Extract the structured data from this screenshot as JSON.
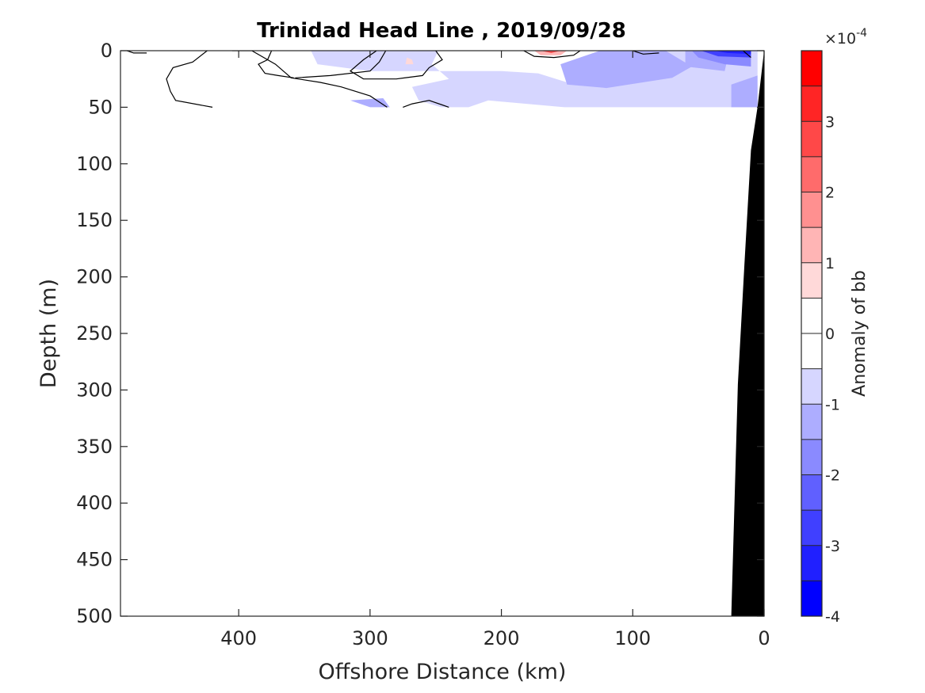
{
  "chart_data": {
    "type": "heatmap",
    "title": "Trinidad Head Line , 2019/09/28",
    "xlabel": "Offshore Distance (km)",
    "ylabel": "Depth (m)",
    "xlim": [
      490,
      0
    ],
    "ylim": [
      500,
      0
    ],
    "x_ticks": [
      400,
      300,
      200,
      100,
      0
    ],
    "y_ticks": [
      0,
      50,
      100,
      150,
      200,
      250,
      300,
      350,
      400,
      450,
      500
    ],
    "colorbar": {
      "label": "Anomaly of bb",
      "exponent_label": "×10",
      "exponent_power": "-4",
      "range": [
        -4,
        4
      ],
      "ticks": [
        -4,
        -3,
        -2,
        -1,
        0,
        1,
        2,
        3
      ],
      "levels": [
        {
          "min": -4.0,
          "max": -3.5,
          "color": "#0000ff"
        },
        {
          "min": -3.5,
          "max": -3.0,
          "color": "#2020ff"
        },
        {
          "min": -3.0,
          "max": -2.5,
          "color": "#4040ff"
        },
        {
          "min": -2.5,
          "max": -2.0,
          "color": "#6060ff"
        },
        {
          "min": -2.0,
          "max": -1.5,
          "color": "#8a8aff"
        },
        {
          "min": -1.5,
          "max": -1.0,
          "color": "#adadff"
        },
        {
          "min": -1.0,
          "max": -0.5,
          "color": "#d6d6ff"
        },
        {
          "min": -0.5,
          "max": 0.0,
          "color": "#ffffff"
        },
        {
          "min": 0.0,
          "max": 0.5,
          "color": "#ffffff"
        },
        {
          "min": 0.5,
          "max": 1.0,
          "color": "#ffd9d9"
        },
        {
          "min": 1.0,
          "max": 1.5,
          "color": "#ffb5b5"
        },
        {
          "min": 1.5,
          "max": 2.0,
          "color": "#ff9090"
        },
        {
          "min": 2.0,
          "max": 2.5,
          "color": "#ff6b6b"
        },
        {
          "min": 2.5,
          "max": 3.0,
          "color": "#ff4848"
        },
        {
          "min": 3.0,
          "max": 3.5,
          "color": "#ff2525"
        },
        {
          "min": 3.5,
          "max": 4.0,
          "color": "#ff0000"
        }
      ]
    },
    "data_depth_range": [
      0,
      50
    ],
    "anomaly_regions": [
      {
        "value": -0.75,
        "points": [
          [
            345,
            0
          ],
          [
            248,
            0
          ],
          [
            253,
            12
          ],
          [
            240,
            25
          ],
          [
            268,
            32
          ],
          [
            263,
            44
          ],
          [
            246,
            50
          ],
          [
            225,
            50
          ],
          [
            210,
            44
          ],
          [
            152,
            50
          ],
          [
            5,
            50
          ],
          [
            5,
            0
          ],
          [
            90,
            0
          ],
          [
            95,
            12
          ],
          [
            150,
            28
          ],
          [
            172,
            20
          ],
          [
            200,
            18
          ],
          [
            270,
            18
          ],
          [
            300,
            18
          ],
          [
            340,
            12
          ]
        ]
      },
      {
        "value": -1.25,
        "points": [
          [
            155,
            12
          ],
          [
            125,
            0
          ],
          [
            75,
            0
          ],
          [
            55,
            14
          ],
          [
            70,
            24
          ],
          [
            120,
            33
          ],
          [
            150,
            30
          ]
        ]
      },
      {
        "value": -1.25,
        "points": [
          [
            60,
            0
          ],
          [
            40,
            0
          ],
          [
            28,
            8
          ],
          [
            30,
            18
          ],
          [
            60,
            14
          ]
        ]
      },
      {
        "value": -1.25,
        "points": [
          [
            25,
            30
          ],
          [
            5,
            22
          ],
          [
            5,
            50
          ],
          [
            25,
            50
          ]
        ]
      },
      {
        "value": -1.25,
        "points": [
          [
            315,
            44
          ],
          [
            300,
            50
          ],
          [
            285,
            50
          ],
          [
            290,
            42
          ]
        ]
      },
      {
        "value": -1.75,
        "points": [
          [
            55,
            0
          ],
          [
            10,
            0
          ],
          [
            10,
            14
          ],
          [
            30,
            12
          ],
          [
            50,
            6
          ]
        ]
      },
      {
        "value": -2.75,
        "points": [
          [
            48,
            0
          ],
          [
            10,
            0
          ],
          [
            10,
            6
          ],
          [
            35,
            5
          ]
        ]
      },
      {
        "value": -3.5,
        "points": [
          [
            38,
            0
          ],
          [
            10,
            0
          ],
          [
            10,
            3
          ],
          [
            28,
            2
          ]
        ]
      },
      {
        "value": 1.25,
        "points": [
          [
            175,
            0
          ],
          [
            150,
            0
          ],
          [
            155,
            4
          ],
          [
            170,
            4
          ]
        ]
      },
      {
        "value": 2.75,
        "points": [
          [
            170,
            0
          ],
          [
            155,
            0
          ],
          [
            162,
            2
          ]
        ]
      },
      {
        "value": 0.75,
        "points": [
          [
            272,
            6
          ],
          [
            268,
            8
          ],
          [
            267,
            12
          ],
          [
            273,
            12
          ]
        ]
      }
    ],
    "zero_contours": [
      [
        [
          485,
          0
        ],
        [
          480,
          2
        ],
        [
          470,
          2
        ]
      ],
      [
        [
          405,
          0
        ],
        [
          390,
          0
        ],
        [
          372,
          12
        ],
        [
          360,
          24
        ],
        [
          338,
          28
        ],
        [
          322,
          32
        ],
        [
          300,
          40
        ],
        [
          287,
          50
        ]
      ],
      [
        [
          375,
          0
        ],
        [
          378,
          8
        ],
        [
          385,
          12
        ],
        [
          380,
          20
        ],
        [
          370,
          22
        ],
        [
          358,
          24
        ]
      ],
      [
        [
          424,
          0
        ],
        [
          435,
          10
        ],
        [
          450,
          15
        ],
        [
          455,
          25
        ],
        [
          452,
          36
        ],
        [
          448,
          44
        ],
        [
          420,
          50
        ]
      ],
      [
        [
          288,
          0
        ],
        [
          293,
          10
        ],
        [
          300,
          18
        ],
        [
          330,
          22
        ],
        [
          357,
          24
        ]
      ],
      [
        [
          250,
          0
        ],
        [
          245,
          8
        ],
        [
          255,
          15
        ],
        [
          260,
          22
        ],
        [
          280,
          25
        ],
        [
          305,
          25
        ],
        [
          315,
          18
        ],
        [
          305,
          8
        ],
        [
          295,
          0
        ]
      ],
      [
        [
          275,
          50
        ],
        [
          268,
          47
        ],
        [
          255,
          44
        ],
        [
          245,
          48
        ],
        [
          240,
          50
        ]
      ],
      [
        [
          183,
          0
        ],
        [
          175,
          5
        ],
        [
          160,
          6
        ],
        [
          145,
          4
        ],
        [
          140,
          0
        ]
      ],
      [
        [
          100,
          0
        ],
        [
          92,
          3
        ],
        [
          80,
          2
        ]
      ],
      [
        [
          16,
          0
        ],
        [
          10,
          6
        ]
      ]
    ],
    "bathymetry": [
      [
        0,
        0
      ],
      [
        5,
        50
      ],
      [
        10,
        88
      ],
      [
        15,
        190
      ],
      [
        20,
        295
      ],
      [
        25,
        500
      ],
      [
        0,
        500
      ]
    ]
  }
}
